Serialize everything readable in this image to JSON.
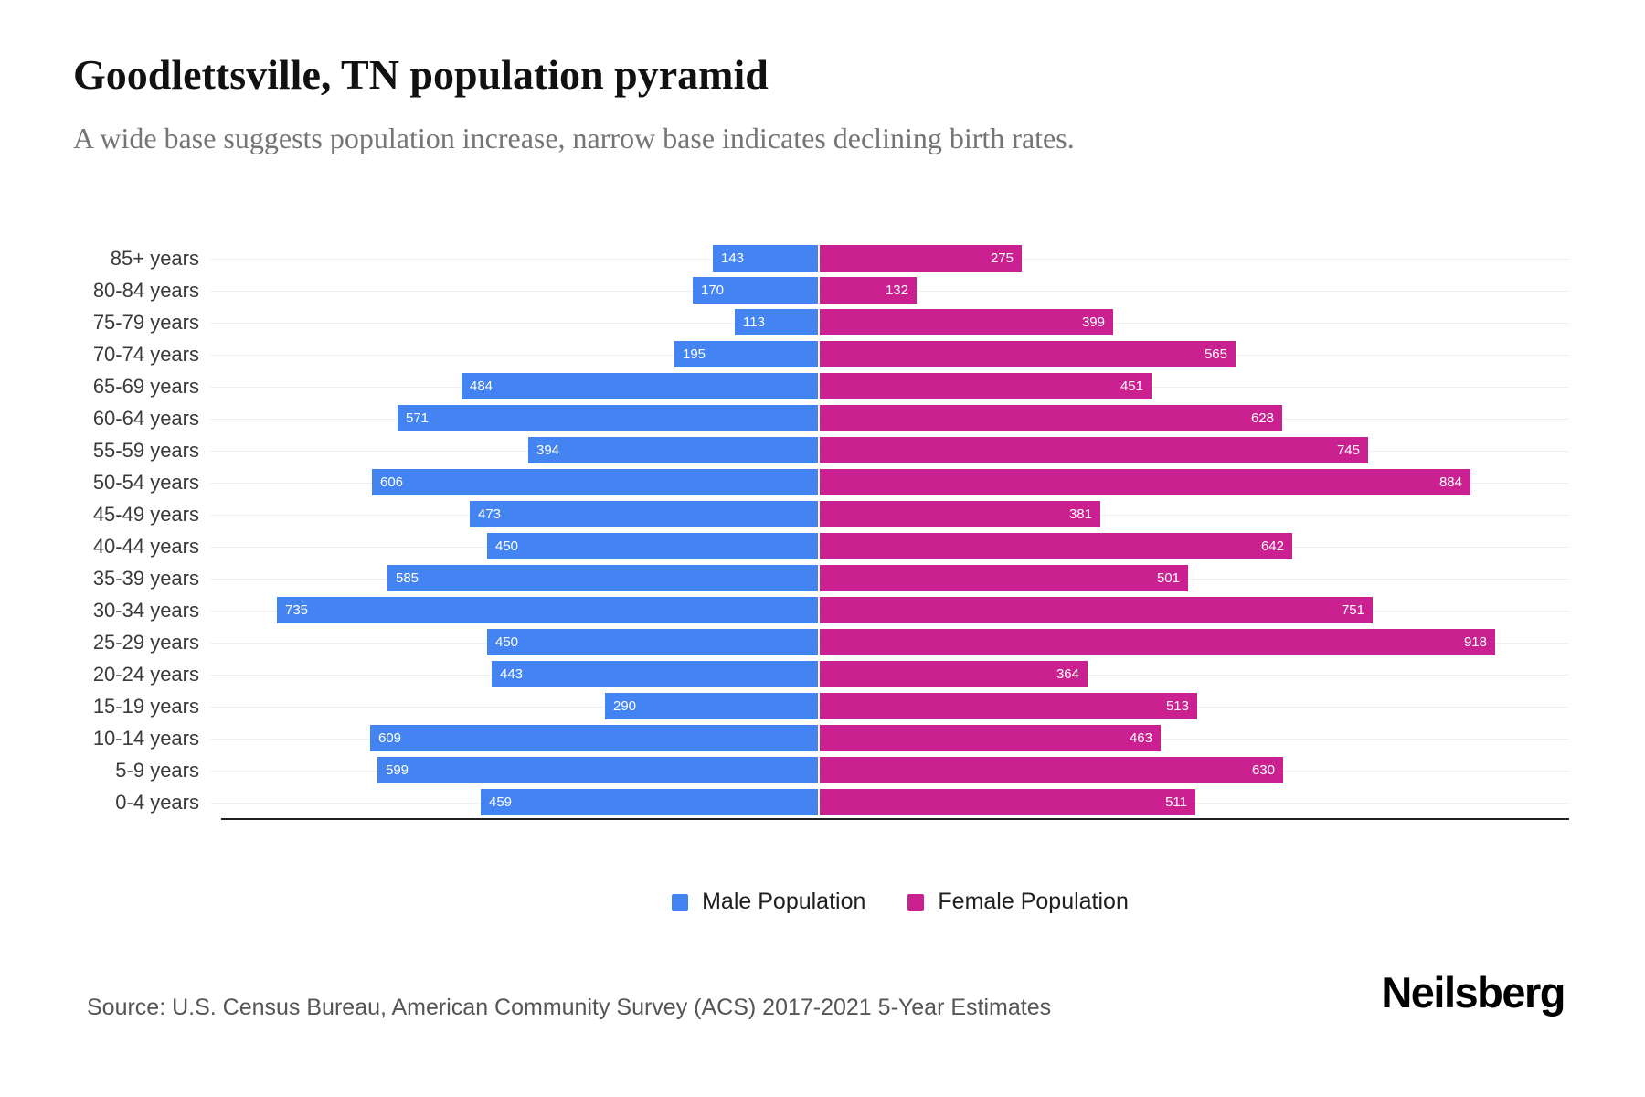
{
  "header": {
    "title": "Goodlettsville, TN population pyramid",
    "subtitle": "A wide base suggests population increase, narrow base indicates declining birth rates."
  },
  "chart_data": {
    "type": "bar",
    "variant": "population-pyramid",
    "orientation": "horizontal",
    "grid": "light-horizontal-per-row",
    "legend_position": "bottom",
    "value_labels": "inside-bar-ends",
    "axis_max_per_side": 1000,
    "categories": [
      "85+ years",
      "80-84 years",
      "75-79 years",
      "70-74 years",
      "65-69 years",
      "60-64 years",
      "55-59 years",
      "50-54 years",
      "45-49 years",
      "40-44 years",
      "35-39 years",
      "30-34 years",
      "25-29 years",
      "20-24 years",
      "15-19 years",
      "10-14 years",
      "5-9 years",
      "0-4 years"
    ],
    "series": [
      {
        "name": "Male Population",
        "side": "left",
        "color": "#4484F2",
        "values": [
          143,
          170,
          113,
          195,
          484,
          571,
          394,
          606,
          473,
          450,
          585,
          735,
          450,
          443,
          290,
          609,
          599,
          459
        ]
      },
      {
        "name": "Female Population",
        "side": "right",
        "color": "#CB2190",
        "values": [
          275,
          132,
          399,
          565,
          451,
          628,
          745,
          884,
          381,
          642,
          501,
          751,
          918,
          364,
          513,
          463,
          630,
          511
        ]
      }
    ]
  },
  "legend": {
    "male_label": "Male Population",
    "female_label": "Female Population"
  },
  "footer": {
    "source": "Source: U.S. Census Bureau, American Community Survey (ACS) 2017-2021 5-Year Estimates",
    "brand": "Neilsberg"
  },
  "colors": {
    "male": "#4484F2",
    "female": "#CB2190",
    "gridline": "#EFEFEF",
    "axis": "#222222",
    "title": "#111111",
    "subtitle": "#757575",
    "row_label": "#3A3A3A",
    "source_text": "#555555"
  }
}
